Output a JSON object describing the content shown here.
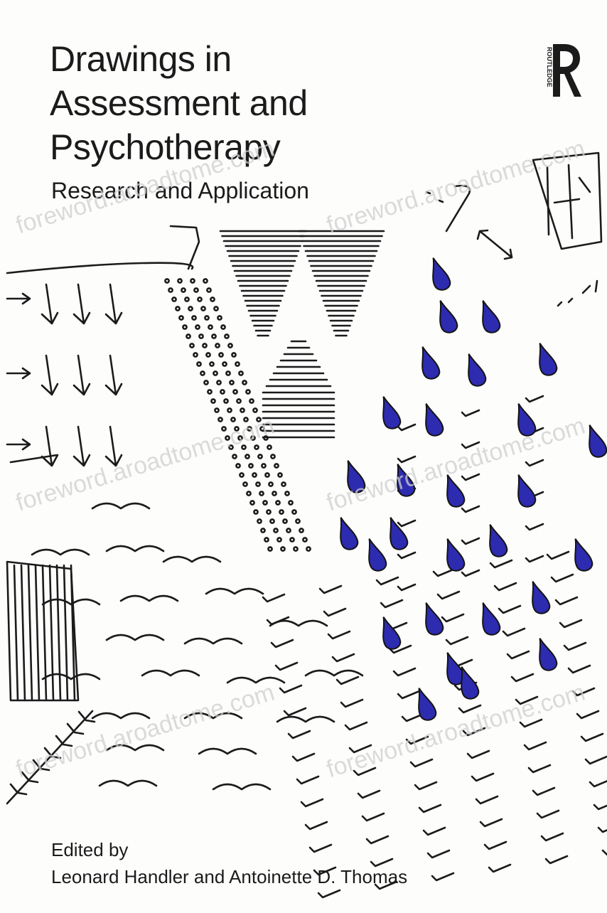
{
  "book": {
    "title_lines": [
      "Drawings in",
      "Assessment and",
      "Psychotherapy"
    ],
    "subtitle": "Research and Application",
    "edited_by": "Edited by",
    "editors": "Leonard Handler and Antoinette D. Thomas",
    "publisher": "ROUTLEDGE"
  },
  "watermark": "foreword.aroadtome.com",
  "colors": {
    "ink": "#1b1b1b",
    "drop_blue": "#2d2bb0",
    "watermark": "#cfcfcf"
  }
}
